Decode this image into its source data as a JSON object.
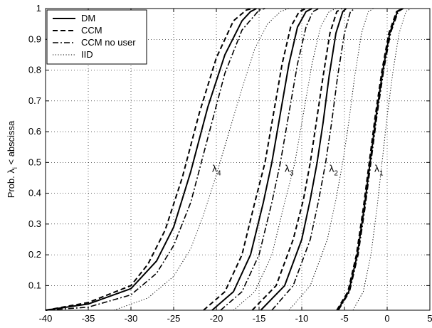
{
  "chart_data": {
    "type": "line",
    "title": "",
    "xlabel": "",
    "ylabel": {
      "prefix": "Prob. ",
      "symbol": "λ",
      "subscript": "i",
      "suffix": " < abscissa"
    },
    "xlim": [
      -40,
      5
    ],
    "ylim": [
      0.02,
      1.0
    ],
    "x_ticks": [
      -40,
      -35,
      -30,
      -25,
      -20,
      -15,
      -10,
      -5,
      0,
      5
    ],
    "y_ticks": [
      0.1,
      0.2,
      0.3,
      0.4,
      0.5,
      0.6,
      0.7,
      0.8,
      0.9,
      1
    ],
    "grid": "dotted",
    "legend_placement": "top-left",
    "series": [
      {
        "name": "DM",
        "style": "solid",
        "groups": [
          {
            "x": [
              -40,
              -35,
              -30,
              -27,
              -25,
              -23,
              -21,
              -19,
              -17,
              -16,
              -15.3
            ],
            "y": [
              0.02,
              0.04,
              0.09,
              0.18,
              0.29,
              0.47,
              0.68,
              0.85,
              0.96,
              0.99,
              1.0
            ]
          },
          {
            "x": [
              -20.5,
              -18,
              -16,
              -14.5,
              -13.5,
              -12.5,
              -11.5,
              -10.5,
              -9.5,
              -8.8
            ],
            "y": [
              0.02,
              0.08,
              0.2,
              0.37,
              0.5,
              0.66,
              0.82,
              0.94,
              0.99,
              1.0
            ]
          },
          {
            "x": [
              -14.8,
              -12,
              -10,
              -9,
              -8.2,
              -7.5,
              -6.8,
              -6,
              -5.2,
              -4.8
            ],
            "y": [
              0.02,
              0.1,
              0.25,
              0.38,
              0.5,
              0.63,
              0.78,
              0.92,
              0.99,
              1.0
            ]
          },
          {
            "x": [
              -5.8,
              -4.5,
              -3.5,
              -2.7,
              -2,
              -1.3,
              -0.5,
              0.3,
              1.2,
              1.8
            ],
            "y": [
              0.02,
              0.08,
              0.2,
              0.35,
              0.5,
              0.65,
              0.8,
              0.92,
              0.99,
              1.0
            ]
          }
        ]
      },
      {
        "name": "CCM",
        "style": "dashed",
        "groups": [
          {
            "x": [
              -40,
              -35,
              -30,
              -28,
              -26,
              -24,
              -22,
              -20,
              -18,
              -16.5,
              -15.8
            ],
            "y": [
              0.02,
              0.045,
              0.1,
              0.17,
              0.28,
              0.45,
              0.66,
              0.84,
              0.96,
              0.995,
              1.0
            ]
          },
          {
            "x": [
              -21.5,
              -19,
              -17,
              -15.5,
              -14.3,
              -13.3,
              -12.3,
              -11.3,
              -10.3,
              -9.5
            ],
            "y": [
              0.02,
              0.08,
              0.2,
              0.37,
              0.5,
              0.66,
              0.82,
              0.94,
              0.99,
              1.0
            ]
          },
          {
            "x": [
              -15.8,
              -13,
              -11,
              -9.8,
              -9,
              -8.3,
              -7.5,
              -6.7,
              -5.9,
              -5.3
            ],
            "y": [
              0.02,
              0.1,
              0.25,
              0.38,
              0.5,
              0.63,
              0.78,
              0.92,
              0.99,
              1.0
            ]
          },
          {
            "x": [
              -5.9,
              -4.6,
              -3.6,
              -2.8,
              -2.1,
              -1.4,
              -0.6,
              0.2,
              1.1,
              1.7
            ],
            "y": [
              0.02,
              0.08,
              0.2,
              0.35,
              0.5,
              0.65,
              0.8,
              0.92,
              0.99,
              1.0
            ]
          }
        ]
      },
      {
        "name": "CCM no user",
        "style": "dashdot",
        "groups": [
          {
            "x": [
              -40,
              -35,
              -30,
              -27,
              -25,
              -23,
              -21,
              -19,
              -17,
              -15,
              -14.3
            ],
            "y": [
              0.02,
              0.03,
              0.07,
              0.14,
              0.23,
              0.37,
              0.58,
              0.79,
              0.93,
              0.995,
              1.0
            ]
          },
          {
            "x": [
              -19.5,
              -17,
              -15,
              -13.5,
              -12.5,
              -11.5,
              -10.5,
              -9.5,
              -8.7,
              -8.0
            ],
            "y": [
              0.02,
              0.08,
              0.2,
              0.37,
              0.5,
              0.66,
              0.82,
              0.94,
              0.99,
              1.0
            ]
          },
          {
            "x": [
              -13.5,
              -11,
              -9,
              -8,
              -7.2,
              -6.5,
              -5.8,
              -5,
              -4.3,
              -3.8
            ],
            "y": [
              0.02,
              0.1,
              0.25,
              0.38,
              0.5,
              0.63,
              0.78,
              0.92,
              0.99,
              1.0
            ]
          },
          {
            "x": [
              -5.7,
              -4.4,
              -3.4,
              -2.6,
              -1.9,
              -1.2,
              -0.4,
              0.4,
              1.3,
              1.9
            ],
            "y": [
              0.02,
              0.08,
              0.2,
              0.35,
              0.5,
              0.65,
              0.8,
              0.92,
              0.99,
              1.0
            ]
          }
        ]
      },
      {
        "name": "IID",
        "style": "dotted",
        "groups": [
          {
            "x": [
              -32,
              -28,
              -25,
              -23,
              -21.5,
              -20,
              -18.5,
              -17,
              -15.5,
              -14,
              -12.5,
              -11.5
            ],
            "y": [
              0.02,
              0.06,
              0.13,
              0.22,
              0.33,
              0.46,
              0.6,
              0.74,
              0.87,
              0.95,
              0.99,
              1.0
            ]
          },
          {
            "x": [
              -18,
              -15.5,
              -13.5,
              -12,
              -10.8,
              -9.8,
              -8.8,
              -7.8,
              -6.8,
              -6.0
            ],
            "y": [
              0.02,
              0.08,
              0.2,
              0.37,
              0.5,
              0.66,
              0.82,
              0.94,
              0.99,
              1.0
            ]
          },
          {
            "x": [
              -11.5,
              -9,
              -7,
              -6,
              -5.2,
              -4.5,
              -3.8,
              -3,
              -2.2,
              -1.6
            ],
            "y": [
              0.02,
              0.1,
              0.25,
              0.38,
              0.5,
              0.63,
              0.78,
              0.92,
              0.99,
              1.0
            ]
          },
          {
            "x": [
              -4,
              -2.8,
              -1.9,
              -1.2,
              -0.6,
              0,
              0.7,
              1.4,
              2.2,
              2.8
            ],
            "y": [
              0.02,
              0.08,
              0.2,
              0.35,
              0.5,
              0.65,
              0.8,
              0.92,
              0.99,
              1.0
            ]
          }
        ]
      }
    ],
    "annotations": [
      {
        "symbol": "λ",
        "subscript": "4",
        "x": -20.5,
        "y": 0.47
      },
      {
        "symbol": "λ",
        "subscript": "3",
        "x": -12.0,
        "y": 0.47
      },
      {
        "symbol": "λ",
        "subscript": "2",
        "x": -6.8,
        "y": 0.47
      },
      {
        "symbol": "λ",
        "subscript": "1",
        "x": -1.5,
        "y": 0.47
      }
    ]
  }
}
